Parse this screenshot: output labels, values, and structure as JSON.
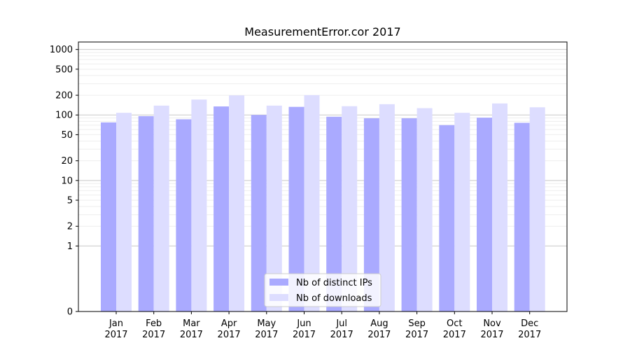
{
  "chart_data": {
    "type": "bar",
    "title": "MeasurementError.cor 2017",
    "xlabel": "",
    "ylabel": "",
    "y_scale": "symlog",
    "y_tick_values": [
      0,
      1,
      2,
      5,
      10,
      20,
      50,
      100,
      200,
      500,
      1000
    ],
    "y_tick_labels": [
      "0",
      "1",
      "2",
      "5",
      "10",
      "20",
      "50",
      "100",
      "200",
      "500",
      "1000"
    ],
    "ylim": [
      0,
      1300
    ],
    "categories": [
      [
        "Jan",
        "2017"
      ],
      [
        "Feb",
        "2017"
      ],
      [
        "Mar",
        "2017"
      ],
      [
        "Apr",
        "2017"
      ],
      [
        "May",
        "2017"
      ],
      [
        "Jun",
        "2017"
      ],
      [
        "Jul",
        "2017"
      ],
      [
        "Aug",
        "2017"
      ],
      [
        "Sep",
        "2017"
      ],
      [
        "Oct",
        "2017"
      ],
      [
        "Nov",
        "2017"
      ],
      [
        "Dec",
        "2017"
      ]
    ],
    "series": [
      {
        "name": "Nb of distinct IPs",
        "color": "#aaaaff",
        "values": [
          77,
          96,
          86,
          135,
          100,
          133,
          94,
          89,
          89,
          70,
          91,
          76
        ]
      },
      {
        "name": "Nb of downloads",
        "color": "#ddddff",
        "values": [
          108,
          139,
          172,
          199,
          139,
          201,
          136,
          146,
          127,
          108,
          150,
          131
        ]
      }
    ],
    "legend_position": "bottom-center",
    "grid": "horizontal"
  }
}
